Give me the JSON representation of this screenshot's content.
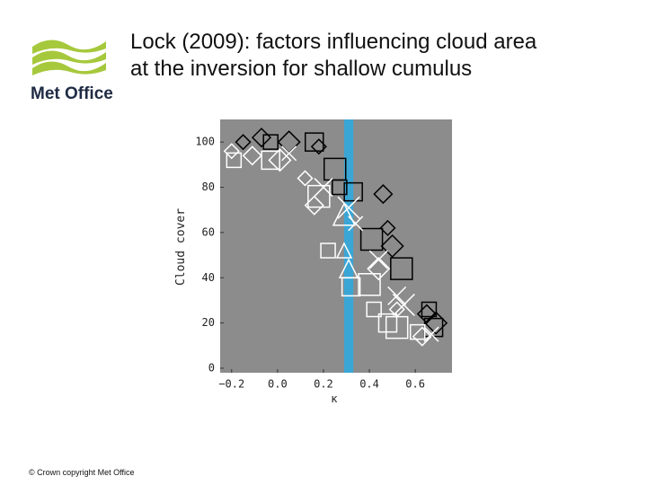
{
  "slide": {
    "title_lines": [
      "Lock (2009): factors influencing cloud area",
      "at the inversion for shallow cumulus"
    ],
    "logo_text": "Met Office",
    "footer": "© Crown copyright   Met Office"
  },
  "chart_data": {
    "type": "scatter",
    "xlabel": "κ",
    "ylabel": "Cloud cover",
    "xlim": [
      -0.25,
      0.76
    ],
    "ylim": [
      -2,
      110
    ],
    "xticks": [
      {
        "value": -0.2,
        "label": "−0.2"
      },
      {
        "value": 0,
        "label": "0.0"
      },
      0.2,
      0.4,
      0.6
    ],
    "yticks": [
      0,
      20,
      40,
      60,
      80,
      100
    ],
    "background": "#8c8c8c",
    "highlight_band": {
      "range": [
        0.29,
        0.33
      ],
      "color": "#3aa6d6"
    },
    "series": [
      {
        "marker": "diamond",
        "color": "#000000",
        "x": [
          -0.15,
          -0.07,
          0.05,
          0.18,
          0.46,
          0.5,
          0.48,
          0.65,
          0.69
        ],
        "y": [
          100,
          102,
          100,
          98,
          77,
          54,
          62,
          24,
          20
        ]
      },
      {
        "marker": "square",
        "color": "#000000",
        "x": [
          -0.03,
          0.16,
          0.25,
          0.27,
          0.33,
          0.54,
          0.66,
          0.68,
          0.41
        ],
        "y": [
          100,
          100,
          88,
          80,
          78,
          44,
          26,
          18,
          57
        ]
      },
      {
        "marker": "square",
        "color": "#ffffff",
        "x": [
          -0.19,
          -0.03,
          0.18,
          0.22,
          0.32,
          0.4,
          0.42,
          0.48,
          0.52,
          0.61
        ],
        "y": [
          92,
          92,
          76,
          52,
          36,
          37,
          26,
          20,
          18,
          16
        ]
      },
      {
        "marker": "diamond",
        "color": "#ffffff",
        "x": [
          -0.2,
          -0.11,
          0.01,
          0.12,
          0.16,
          0.44,
          0.52,
          0.63
        ],
        "y": [
          96,
          94,
          92,
          84,
          72,
          44,
          26,
          14
        ]
      },
      {
        "marker": "cross",
        "color": "#ffffff",
        "x": [
          0.05,
          0.2,
          0.31,
          0.34,
          0.44,
          0.55,
          0.67,
          0.52
        ],
        "y": [
          95,
          80,
          71,
          64,
          48,
          28,
          15,
          32
        ]
      },
      {
        "marker": "triangle",
        "color": "#ffffff",
        "x": [
          0.29,
          0.31,
          0.29
        ],
        "y": [
          52,
          44,
          68
        ]
      }
    ]
  }
}
